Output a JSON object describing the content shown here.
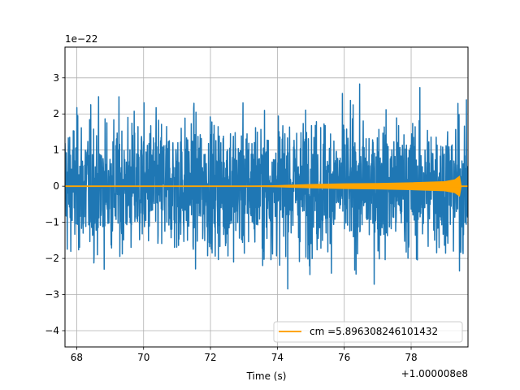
{
  "chart_data": {
    "type": "line",
    "title": "",
    "xlabel": "Time (s)",
    "ylabel": "",
    "x_offset_label": "+1.000008e8",
    "y_scale_label": "1e−22",
    "xlim": [
      67.65,
      79.7
    ],
    "ylim": [
      -4.45,
      3.85
    ],
    "x_ticks": [
      {
        "value": 68,
        "label": "68"
      },
      {
        "value": 70,
        "label": "70"
      },
      {
        "value": 72,
        "label": "72"
      },
      {
        "value": 74,
        "label": "74"
      },
      {
        "value": 76,
        "label": "76"
      },
      {
        "value": 78,
        "label": "78"
      }
    ],
    "y_ticks": [
      {
        "value": 3,
        "label": "3"
      },
      {
        "value": 2,
        "label": "2"
      },
      {
        "value": 1,
        "label": "1"
      },
      {
        "value": 0,
        "label": "0"
      },
      {
        "value": -1,
        "label": "−1"
      },
      {
        "value": -2,
        "label": "−2"
      },
      {
        "value": -3,
        "label": "−3"
      },
      {
        "value": -4,
        "label": "−4"
      }
    ],
    "grid": true,
    "legend_position": "lower-right",
    "series": [
      {
        "name": "",
        "color": "#1f77b4",
        "description": "noise strain",
        "envelope_max": 3.4,
        "envelope_min": -4.05,
        "typical_band": [
          -2.0,
          2.0
        ]
      },
      {
        "name": "cm =5.896308246101432",
        "color": "#ffa500",
        "description": "chirp template",
        "x": [
          67.65,
          73.0,
          74.0,
          75.0,
          76.0,
          77.0,
          78.0,
          79.0,
          79.3,
          79.45,
          79.5,
          79.7
        ],
        "envelope": [
          0.0,
          0.0,
          0.02,
          0.05,
          0.07,
          0.08,
          0.1,
          0.13,
          0.18,
          0.28,
          0.0,
          0.0
        ]
      }
    ]
  }
}
